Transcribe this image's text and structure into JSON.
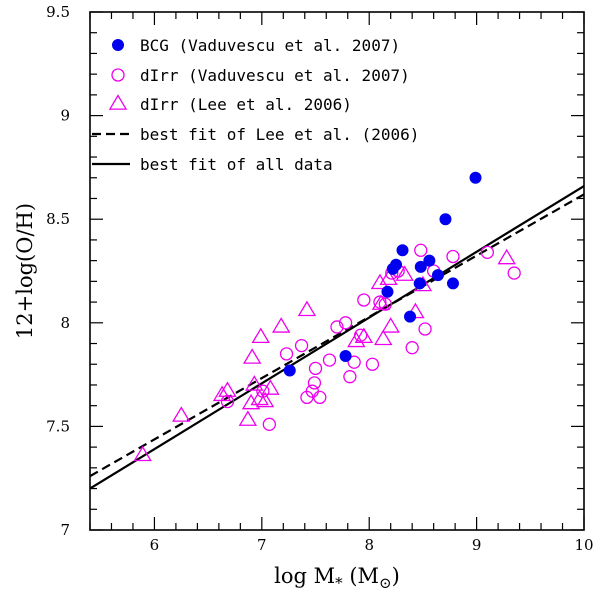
{
  "chart_data": {
    "type": "scatter",
    "title": "",
    "xlabel": "log M* (M⊙)",
    "ylabel": "12+log(O/H)",
    "xlabel_parts": {
      "main": "log M",
      "sub": "*",
      "unit_open": " (M",
      "unit_sub": "⊙",
      "unit_close": ")"
    },
    "xlim": [
      5.4,
      10.0
    ],
    "ylim": [
      7.0,
      9.5
    ],
    "x_ticks": [
      6,
      7,
      8,
      9,
      10
    ],
    "x_tick_labels": [
      "6",
      "7",
      "8",
      "9",
      "10"
    ],
    "y_ticks": [
      7,
      7.5,
      8,
      8.5,
      9,
      9.5
    ],
    "y_tick_labels": [
      "7",
      "7.5",
      "8",
      "8.5",
      "9",
      "9.5"
    ],
    "grid": false,
    "legend_position": "top-left",
    "series": [
      {
        "name": "BCG (Vaduvescu et al. 2007)",
        "marker": "filled-circle",
        "color": "#0000ee",
        "points": [
          [
            7.26,
            7.77
          ],
          [
            7.78,
            7.84
          ],
          [
            8.17,
            8.15
          ],
          [
            8.22,
            8.26
          ],
          [
            8.25,
            8.28
          ],
          [
            8.31,
            8.35
          ],
          [
            8.38,
            8.03
          ],
          [
            8.47,
            8.19
          ],
          [
            8.48,
            8.27
          ],
          [
            8.56,
            8.3
          ],
          [
            8.64,
            8.23
          ],
          [
            8.71,
            8.5
          ],
          [
            8.78,
            8.19
          ],
          [
            8.99,
            8.7
          ]
        ]
      },
      {
        "name": "dIrr (Vaduvescu et al. 2007)",
        "marker": "open-circle",
        "color": "#ee00ee",
        "points": [
          [
            6.68,
            7.62
          ],
          [
            7.01,
            7.67
          ],
          [
            7.07,
            7.51
          ],
          [
            7.23,
            7.85
          ],
          [
            7.37,
            7.89
          ],
          [
            7.42,
            7.64
          ],
          [
            7.47,
            7.67
          ],
          [
            7.49,
            7.71
          ],
          [
            7.5,
            7.78
          ],
          [
            7.54,
            7.64
          ],
          [
            7.63,
            7.82
          ],
          [
            7.7,
            7.98
          ],
          [
            7.78,
            8.0
          ],
          [
            7.82,
            7.74
          ],
          [
            7.86,
            7.81
          ],
          [
            7.92,
            7.94
          ],
          [
            7.95,
            8.11
          ],
          [
            8.1,
            8.1
          ],
          [
            8.15,
            8.09
          ],
          [
            8.21,
            8.24
          ],
          [
            8.27,
            8.25
          ],
          [
            8.4,
            7.88
          ],
          [
            8.48,
            8.35
          ],
          [
            8.52,
            7.97
          ],
          [
            8.6,
            8.25
          ],
          [
            8.78,
            8.32
          ],
          [
            9.1,
            8.34
          ],
          [
            9.35,
            8.24
          ],
          [
            8.03,
            7.8
          ]
        ]
      },
      {
        "name": "dIrr (Lee et al. 2006)",
        "marker": "open-triangle",
        "color": "#ee00ee",
        "points": [
          [
            5.89,
            7.36
          ],
          [
            6.25,
            7.55
          ],
          [
            6.63,
            7.65
          ],
          [
            6.68,
            7.67
          ],
          [
            6.87,
            7.53
          ],
          [
            6.9,
            7.61
          ],
          [
            6.91,
            7.83
          ],
          [
            6.93,
            7.7
          ],
          [
            6.98,
            7.63
          ],
          [
            6.99,
            7.93
          ],
          [
            7.03,
            7.62
          ],
          [
            7.08,
            7.68
          ],
          [
            7.18,
            7.98
          ],
          [
            7.42,
            8.06
          ],
          [
            7.88,
            7.91
          ],
          [
            7.95,
            7.93
          ],
          [
            8.1,
            8.19
          ],
          [
            8.11,
            8.09
          ],
          [
            8.13,
            7.92
          ],
          [
            8.18,
            8.21
          ],
          [
            8.2,
            7.98
          ],
          [
            8.33,
            8.23
          ],
          [
            8.43,
            8.05
          ],
          [
            8.5,
            8.18
          ],
          [
            9.28,
            8.31
          ]
        ]
      }
    ],
    "lines": [
      {
        "name": "best fit of Lee et al. (2006)",
        "style": "dashed",
        "color": "#000000",
        "x": [
          5.4,
          10.0
        ],
        "y": [
          7.26,
          8.62
        ]
      },
      {
        "name": "best fit of all data",
        "style": "solid",
        "color": "#000000",
        "x": [
          5.4,
          10.0
        ],
        "y": [
          7.2,
          8.66
        ]
      }
    ]
  }
}
